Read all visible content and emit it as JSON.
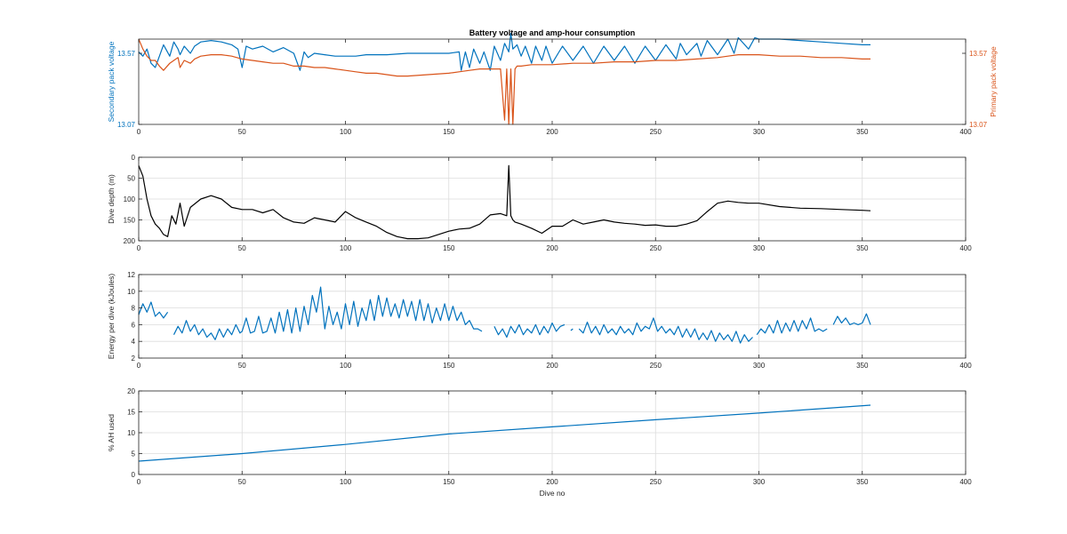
{
  "chart_data": [
    {
      "type": "line",
      "title": "Battery voltage and amp-hour consumption",
      "xlabel": "",
      "ylabel": "Secondary pack voltage",
      "ylabel_right": "Primary pack voltage",
      "xlim": [
        0,
        400
      ],
      "ylim": [
        13.07,
        13.67
      ],
      "ylim_right": [
        13.07,
        13.67
      ],
      "xticks": [
        "0",
        "50",
        "100",
        "150",
        "200",
        "250",
        "300",
        "350",
        "400"
      ],
      "yticks": [
        "13.07",
        "13.57"
      ],
      "yticks_right": [
        "13.07",
        "13.57"
      ],
      "grid": false,
      "series": [
        {
          "color": "#0072BD",
          "axis": "left",
          "x": [
            0,
            2,
            4,
            6,
            8,
            10,
            12,
            15,
            17,
            19,
            20,
            22,
            25,
            27,
            30,
            35,
            40,
            45,
            48,
            50,
            52,
            55,
            60,
            65,
            70,
            75,
            78,
            80,
            82,
            85,
            90,
            95,
            100,
            105,
            110,
            120,
            130,
            140,
            150,
            155,
            156,
            158,
            160,
            162,
            165,
            167,
            170,
            172,
            175,
            177,
            179,
            180,
            181,
            183,
            185,
            187,
            190,
            192,
            195,
            197,
            200,
            205,
            210,
            215,
            220,
            225,
            230,
            235,
            240,
            245,
            250,
            255,
            260,
            262,
            265,
            270,
            272,
            275,
            280,
            285,
            288,
            290,
            295,
            298,
            300,
            310,
            320,
            330,
            340,
            350,
            354
          ],
          "y": [
            13.58,
            13.55,
            13.6,
            13.5,
            13.47,
            13.55,
            13.63,
            13.55,
            13.65,
            13.6,
            13.56,
            13.62,
            13.57,
            13.62,
            13.65,
            13.66,
            13.65,
            13.63,
            13.6,
            13.47,
            13.62,
            13.6,
            13.62,
            13.58,
            13.61,
            13.57,
            13.45,
            13.58,
            13.54,
            13.57,
            13.56,
            13.55,
            13.55,
            13.55,
            13.56,
            13.56,
            13.57,
            13.57,
            13.57,
            13.58,
            13.45,
            13.58,
            13.47,
            13.6,
            13.5,
            13.58,
            13.45,
            13.62,
            13.52,
            13.64,
            13.58,
            13.71,
            13.6,
            13.63,
            13.55,
            13.62,
            13.5,
            13.62,
            13.52,
            13.62,
            13.5,
            13.62,
            13.52,
            13.62,
            13.5,
            13.62,
            13.52,
            13.62,
            13.5,
            13.62,
            13.52,
            13.63,
            13.53,
            13.64,
            13.56,
            13.64,
            13.55,
            13.66,
            13.56,
            13.67,
            13.57,
            13.68,
            13.6,
            13.68,
            13.67,
            13.67,
            13.66,
            13.65,
            13.64,
            13.63,
            13.63
          ]
        },
        {
          "color": "#D95319",
          "axis": "right",
          "x": [
            0,
            2,
            4,
            6,
            8,
            10,
            12,
            15,
            17,
            19,
            20,
            22,
            25,
            27,
            30,
            35,
            40,
            45,
            50,
            55,
            60,
            65,
            70,
            75,
            80,
            85,
            90,
            95,
            100,
            105,
            110,
            115,
            120,
            125,
            130,
            140,
            150,
            155,
            160,
            165,
            170,
            175,
            177,
            178,
            179,
            180,
            181,
            182,
            183,
            185,
            190,
            200,
            210,
            220,
            230,
            240,
            250,
            260,
            270,
            280,
            285,
            290,
            295,
            300,
            310,
            320,
            330,
            340,
            350,
            354
          ],
          "y": [
            13.67,
            13.6,
            13.55,
            13.52,
            13.52,
            13.48,
            13.45,
            13.5,
            13.52,
            13.54,
            13.47,
            13.52,
            13.5,
            13.53,
            13.55,
            13.56,
            13.56,
            13.55,
            13.53,
            13.52,
            13.51,
            13.5,
            13.5,
            13.48,
            13.48,
            13.47,
            13.47,
            13.46,
            13.45,
            13.44,
            13.43,
            13.43,
            13.42,
            13.41,
            13.41,
            13.42,
            13.43,
            13.44,
            13.45,
            13.46,
            13.46,
            13.46,
            13.1,
            13.46,
            13.07,
            13.46,
            13.07,
            13.46,
            13.48,
            13.48,
            13.49,
            13.49,
            13.5,
            13.5,
            13.51,
            13.51,
            13.52,
            13.52,
            13.53,
            13.54,
            13.55,
            13.56,
            13.56,
            13.56,
            13.55,
            13.55,
            13.54,
            13.54,
            13.53,
            13.53
          ]
        }
      ]
    },
    {
      "type": "line",
      "xlabel": "",
      "ylabel": "Dive depth (m)",
      "xlim": [
        0,
        400
      ],
      "ylim": [
        0,
        200
      ],
      "y_reversed": true,
      "xticks": [
        "0",
        "50",
        "100",
        "150",
        "200",
        "250",
        "300",
        "350",
        "400"
      ],
      "yticks": [
        "0",
        "50",
        "100",
        "150",
        "200"
      ],
      "grid": true,
      "series": [
        {
          "color": "#000000",
          "x": [
            0,
            2,
            4,
            6,
            8,
            10,
            12,
            14,
            16,
            18,
            20,
            22,
            25,
            30,
            35,
            40,
            45,
            50,
            55,
            60,
            65,
            70,
            75,
            80,
            85,
            90,
            95,
            100,
            105,
            110,
            115,
            120,
            125,
            130,
            135,
            140,
            145,
            150,
            155,
            160,
            165,
            170,
            175,
            178,
            179,
            180,
            181,
            182,
            185,
            190,
            195,
            200,
            205,
            210,
            215,
            220,
            225,
            230,
            235,
            240,
            245,
            250,
            255,
            260,
            265,
            270,
            275,
            280,
            285,
            290,
            295,
            300,
            310,
            320,
            330,
            340,
            350,
            354
          ],
          "y": [
            20,
            45,
            100,
            140,
            160,
            170,
            185,
            190,
            140,
            160,
            110,
            165,
            120,
            100,
            92,
            100,
            120,
            125,
            125,
            133,
            125,
            145,
            155,
            158,
            145,
            150,
            155,
            130,
            145,
            155,
            165,
            180,
            190,
            195,
            195,
            193,
            185,
            177,
            172,
            170,
            160,
            138,
            135,
            140,
            20,
            140,
            150,
            155,
            160,
            170,
            182,
            165,
            165,
            150,
            160,
            155,
            150,
            155,
            158,
            160,
            163,
            162,
            165,
            165,
            160,
            152,
            130,
            110,
            105,
            108,
            110,
            110,
            118,
            122,
            123,
            125,
            127,
            128
          ]
        }
      ]
    },
    {
      "type": "line",
      "xlabel": "",
      "ylabel": "Energy per dive (kJoules)",
      "xlim": [
        0,
        400
      ],
      "ylim": [
        2,
        12
      ],
      "xticks": [
        "0",
        "50",
        "100",
        "150",
        "200",
        "250",
        "300",
        "350",
        "400"
      ],
      "yticks": [
        "2",
        "4",
        "6",
        "8",
        "10",
        "12"
      ],
      "grid": true,
      "series": [
        {
          "color": "#0072BD",
          "segments": [
            {
              "x": [
                0,
                2,
                4,
                6,
                8,
                10,
                12,
                14
              ],
              "y": [
                7.2,
                8.5,
                7.5,
                8.7,
                7.0,
                7.5,
                6.8,
                7.5
              ]
            },
            {
              "x": [
                17,
                19,
                21,
                23,
                25,
                27,
                29,
                31,
                33,
                35,
                37,
                39,
                41,
                43,
                45,
                47,
                49,
                50,
                52,
                54,
                56,
                58,
                60,
                62,
                64,
                66,
                68,
                70,
                72,
                74,
                76,
                78,
                80,
                82,
                84,
                86,
                88,
                90,
                92,
                94,
                96,
                98,
                100,
                102,
                104,
                106,
                108,
                110,
                112,
                114,
                116,
                118,
                120,
                122,
                124,
                126,
                128,
                130,
                132,
                134,
                136,
                138,
                140,
                142,
                144,
                146,
                148,
                150,
                152,
                154,
                156,
                158,
                160,
                162,
                164,
                166
              ],
              "y": [
                4.8,
                5.8,
                5.0,
                6.5,
                5.2,
                6.0,
                4.8,
                5.5,
                4.5,
                5.0,
                4.2,
                5.5,
                4.5,
                5.5,
                4.8,
                6.0,
                5.0,
                5.2,
                6.8,
                5.0,
                5.2,
                7.0,
                5.0,
                5.2,
                6.8,
                5.0,
                7.5,
                5.2,
                7.8,
                5.0,
                8.0,
                5.2,
                8.2,
                6.0,
                9.5,
                7.5,
                10.5,
                5.5,
                8.2,
                6.0,
                7.5,
                5.5,
                8.5,
                6.0,
                8.8,
                5.8,
                8.0,
                6.5,
                9.0,
                6.5,
                9.5,
                7.0,
                9.2,
                7.0,
                8.5,
                6.8,
                9.0,
                7.0,
                8.8,
                6.5,
                9.0,
                6.5,
                8.5,
                6.2,
                8.0,
                6.5,
                8.5,
                6.5,
                8.2,
                6.5,
                7.5,
                6.0,
                6.5,
                5.5,
                5.5,
                5.2
              ]
            },
            {
              "x": [
                172,
                174,
                176,
                178,
                180,
                182,
                184,
                186,
                188,
                190,
                192,
                194,
                196,
                198,
                200,
                202,
                204,
                206
              ],
              "y": [
                5.8,
                4.8,
                5.5,
                4.5,
                5.8,
                5.0,
                6.0,
                4.8,
                5.5,
                5.0,
                6.0,
                4.8,
                5.8,
                5.0,
                6.2,
                5.2,
                5.8,
                6.0
              ]
            },
            {
              "x": [
                209,
                210
              ],
              "y": [
                5.3,
                5.5
              ]
            },
            {
              "x": [
                213,
                215,
                217,
                219,
                221,
                223,
                225,
                227,
                229,
                231,
                233,
                235,
                237,
                239,
                241,
                243,
                245,
                247,
                249,
                251,
                253,
                255,
                257,
                259,
                261,
                263,
                265,
                267,
                269,
                271,
                273,
                275,
                277,
                279,
                281,
                283,
                285,
                287,
                289,
                291,
                293,
                295,
                297
              ],
              "y": [
                5.5,
                5.0,
                6.3,
                5.0,
                5.8,
                4.8,
                6.0,
                5.0,
                5.5,
                4.8,
                5.8,
                5.0,
                5.5,
                4.8,
                6.2,
                5.2,
                5.8,
                5.5,
                6.8,
                5.2,
                5.8,
                5.0,
                5.5,
                4.8,
                5.8,
                4.5,
                5.5,
                4.5,
                5.5,
                4.2,
                5.0,
                4.2,
                5.3,
                4.0,
                5.0,
                4.2,
                4.8,
                4.0,
                5.2,
                3.8,
                4.8,
                4.0,
                4.5
              ]
            },
            {
              "x": [
                299,
                301,
                303,
                305,
                307,
                309,
                311,
                313,
                315,
                317,
                319,
                321,
                323,
                325,
                327,
                329,
                331,
                333
              ],
              "y": [
                4.8,
                5.5,
                5.0,
                6.0,
                5.0,
                6.5,
                5.0,
                6.2,
                5.2,
                6.5,
                5.2,
                6.5,
                5.5,
                6.8,
                5.2,
                5.5,
                5.2,
                5.5
              ]
            },
            {
              "x": [
                336,
                338,
                340,
                342,
                344,
                346,
                348,
                350,
                352,
                354
              ],
              "y": [
                6.0,
                7.0,
                6.2,
                6.8,
                6.0,
                6.2,
                6.0,
                6.2,
                7.3,
                6.0
              ]
            }
          ]
        }
      ]
    },
    {
      "type": "line",
      "xlabel": "Dive no",
      "ylabel": "% AH used",
      "xlim": [
        0,
        400
      ],
      "ylim": [
        0,
        20
      ],
      "xticks": [
        "0",
        "50",
        "100",
        "150",
        "200",
        "250",
        "300",
        "350",
        "400"
      ],
      "yticks": [
        "0",
        "5",
        "10",
        "15",
        "20"
      ],
      "grid": true,
      "series": [
        {
          "color": "#0072BD",
          "x": [
            0,
            50,
            100,
            150,
            200,
            250,
            300,
            354
          ],
          "y": [
            3.2,
            5.0,
            7.2,
            9.7,
            11.4,
            13.1,
            14.7,
            16.6
          ]
        }
      ]
    }
  ]
}
